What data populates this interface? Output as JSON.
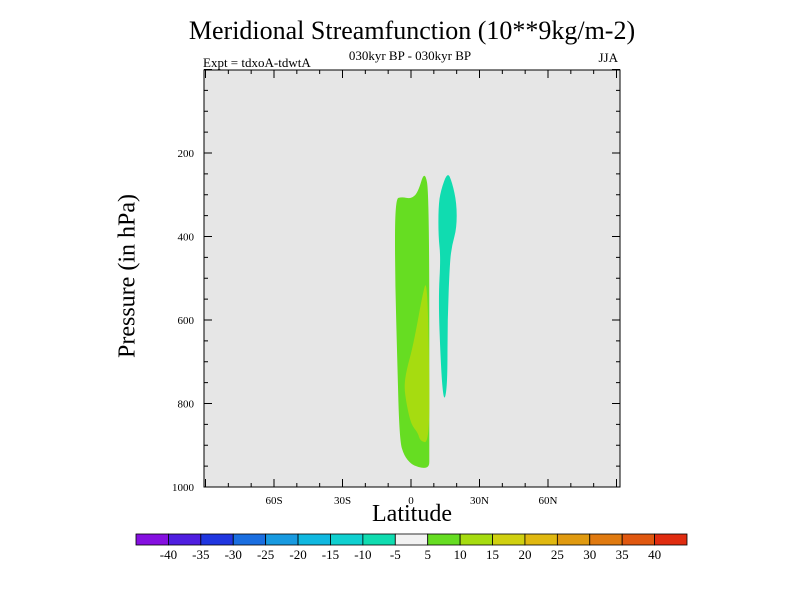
{
  "chart_data": {
    "type": "contour",
    "title": "Meridional Streamfunction (10**9kg/m-2)",
    "subtitle_left": "Expt = tdxoA-tdwtA",
    "subtitle_center": "030kyr BP - 030kyr BP",
    "subtitle_right": "JJA",
    "xlabel": "Latitude",
    "ylabel": "Pressure (in hPa)",
    "xlim": [
      -90,
      90
    ],
    "ylim": [
      1000,
      0
    ],
    "x_ticks": [
      -60,
      -30,
      0,
      30,
      60
    ],
    "x_tick_labels": [
      "60S",
      "30S",
      "0",
      "30N",
      "60N"
    ],
    "y_ticks": [
      200,
      400,
      600,
      800,
      1000
    ],
    "y_tick_labels": [
      "200",
      "400",
      "600",
      "800",
      "1000"
    ],
    "background_color": "#e6e6e6",
    "colorbar": {
      "boundaries": [
        "-40",
        "-35",
        "-30",
        "-25",
        "-20",
        "-15",
        "-10",
        "-5",
        "5",
        "10",
        "15",
        "20",
        "25",
        "30",
        "35",
        "40"
      ],
      "colors": [
        "#8510e0",
        "#4f1ee0",
        "#2036e0",
        "#1a6ee0",
        "#189ae0",
        "#10b8e0",
        "#10d0d0",
        "#10dcb0",
        "#f2f2f2",
        "#66dd22",
        "#a6dc10",
        "#d0d010",
        "#e0b810",
        "#e09a10",
        "#e07a10",
        "#e05810",
        "#e02c10"
      ]
    },
    "regions": [
      {
        "class": "5 to 10",
        "color": "#66dd22",
        "outline": [
          [
            -7,
            310
          ],
          [
            -4,
            305
          ],
          [
            0,
            310
          ],
          [
            3,
            295
          ],
          [
            6,
            240
          ],
          [
            8,
            300
          ],
          [
            8,
            930
          ],
          [
            8,
            950
          ],
          [
            6,
            955
          ],
          [
            3,
            952
          ],
          [
            0,
            945
          ],
          [
            -3,
            925
          ],
          [
            -5,
            890
          ],
          [
            -6,
            700
          ],
          [
            -7,
            500
          ]
        ]
      },
      {
        "class": "10 to 15",
        "color": "#a6dc10",
        "outline": [
          [
            7,
            500
          ],
          [
            8,
            700
          ],
          [
            8,
            895
          ],
          [
            4,
            890
          ],
          [
            3,
            870
          ],
          [
            0,
            850
          ],
          [
            -2,
            800
          ],
          [
            -3,
            760
          ],
          [
            -2,
            720
          ],
          [
            1,
            660
          ],
          [
            5,
            540
          ]
        ]
      },
      {
        "class": "-10 to -5",
        "color": "#10dcb0",
        "outline": [
          [
            12,
            330
          ],
          [
            13,
            290
          ],
          [
            16,
            245
          ],
          [
            18,
            270
          ],
          [
            20,
            320
          ],
          [
            20,
            380
          ],
          [
            18,
            420
          ],
          [
            17,
            460
          ],
          [
            16,
            600
          ],
          [
            16,
            740
          ],
          [
            15,
            790
          ],
          [
            14,
            780
          ],
          [
            13,
            700
          ],
          [
            12,
            550
          ],
          [
            13,
            450
          ],
          [
            12,
            400
          ]
        ]
      }
    ]
  }
}
